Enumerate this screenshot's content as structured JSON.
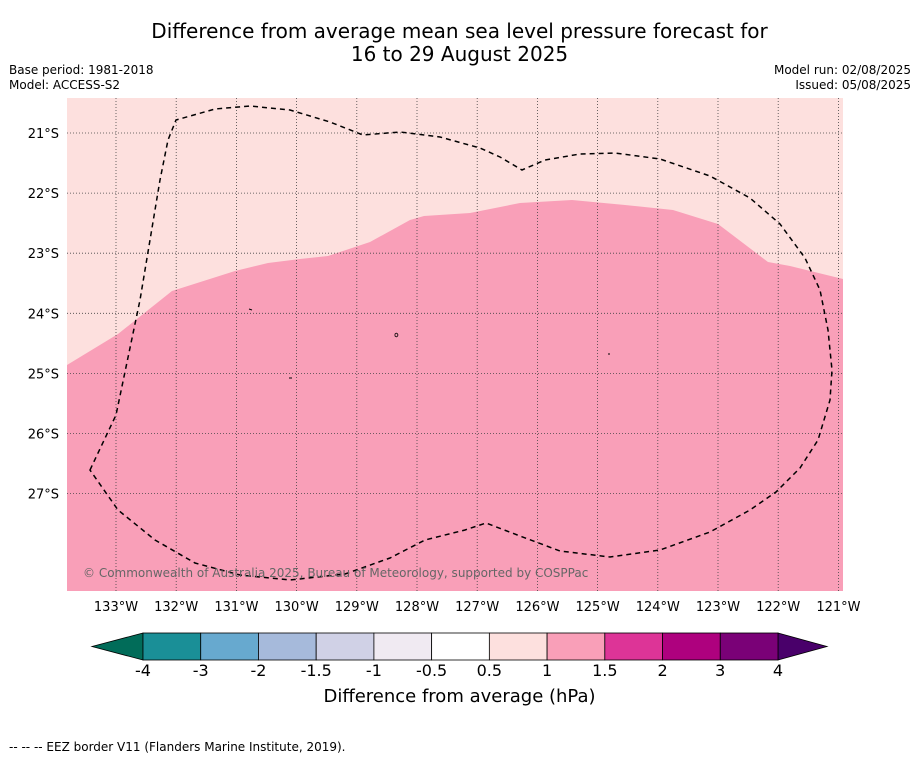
{
  "header": {
    "title_line1": "Difference from average mean sea level pressure forecast for",
    "title_line2": "16 to 29 August 2025",
    "base_period": "Base period: 1981-2018",
    "model": "Model: ACCESS-S2",
    "model_run": "Model run: 02/08/2025",
    "issued": "Issued: 05/08/2025"
  },
  "map": {
    "lon_labels": [
      "133°W",
      "132°W",
      "131°W",
      "130°W",
      "129°W",
      "128°W",
      "127°W",
      "126°W",
      "125°W",
      "124°W",
      "123°W",
      "122°W",
      "121°W"
    ],
    "lat_labels": [
      "21°S",
      "22°S",
      "23°S",
      "24°S",
      "25°S",
      "26°S",
      "27°S"
    ],
    "copyright": "© Commonwealth of Australia 2025, Bureau of Meteorology, supported by COSPPac",
    "colors": {
      "band_0_5_to_1": "#fde0de",
      "band_1_to_1_5": "#f99fb8"
    }
  },
  "colorbar": {
    "ticks": [
      "-4",
      "-3",
      "-2",
      "-1.5",
      "-1",
      "-0.5",
      "0.5",
      "1",
      "1.5",
      "2",
      "3",
      "4"
    ],
    "colors": [
      "#1a8f97",
      "#67a9cf",
      "#a6badb",
      "#d0d1e6",
      "#f0eaf2",
      "#ffffff",
      "#fde0de",
      "#f99fb8",
      "#dd3497",
      "#ae017e",
      "#7a0177"
    ],
    "under_color": "#016c59",
    "over_color": "#49006a",
    "label": "Difference from average (hPa)"
  },
  "footnote": "--  --  -- EEZ border V11 (Flanders Marine Institute, 2019)."
}
